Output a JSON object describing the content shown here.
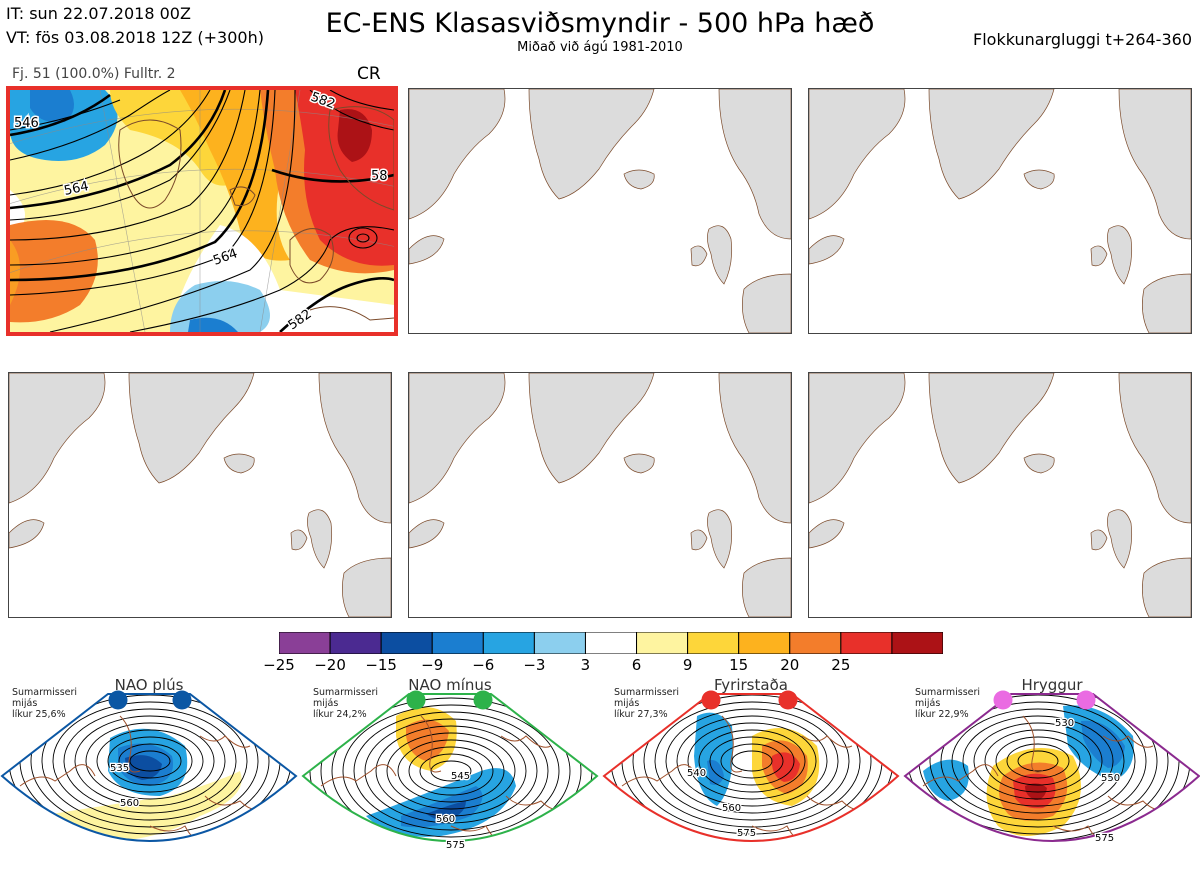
{
  "header": {
    "it_line": "IT: sun 22.07.2018 00Z",
    "vt_line": "VT: fös 03.08.2018 12Z  (+300h)",
    "title": "EC-ENS Klasasviðsmyndir - 500 hPa hæð",
    "subtitle": "Miðað við ágú 1981-2010",
    "window": "Flokkunargluggi t+264-360"
  },
  "panels": {
    "active": {
      "meta": "Fj. 51 (100.0%)   Fulltr. 2",
      "cluster": "CR",
      "contour_labels": [
        "546",
        "564",
        "564",
        "582",
        "582",
        "58"
      ]
    },
    "empty_count": 5
  },
  "colorbar": {
    "colors": [
      "#8a3f97",
      "#4b2a91",
      "#0c4ea1",
      "#1b7ed0",
      "#27a4e2",
      "#8ccfee",
      "#ffffff",
      "#fef4a0",
      "#fdd63a",
      "#fdb21e",
      "#f37d2b",
      "#e8302a",
      "#ac1216"
    ],
    "ticks": [
      "−25",
      "−20",
      "−15",
      "−9",
      "−6",
      "−3",
      "3",
      "6",
      "9",
      "15",
      "20",
      "25"
    ]
  },
  "regimes": [
    {
      "name": "NAO plús",
      "info": "Sumarmisseri\nmijás\nlíkur 25,6%",
      "frame_color": "#0b57a4",
      "dot_color": "#0b57a4",
      "labels": [
        "535",
        "560"
      ]
    },
    {
      "name": "NAO mínus",
      "info": "Sumarmisseri\nmijás\nlíkur 24,2%",
      "frame_color": "#2db24a",
      "dot_color": "#2db24a",
      "labels": [
        "545",
        "560",
        "575"
      ]
    },
    {
      "name": "Fyrirstaða",
      "info": "Sumarmisseri\nmijás\nlíkur 27,3%",
      "frame_color": "#e8302a",
      "dot_color": "#e8302a",
      "labels": [
        "540",
        "560",
        "575"
      ]
    },
    {
      "name": "Hryggur",
      "info": "Sumarmisseri\nmijás\nlíkur 22,9%",
      "frame_color": "#8b2a8f",
      "dot_color": "#ea6be2",
      "labels": [
        "530",
        "550",
        "575"
      ]
    }
  ]
}
